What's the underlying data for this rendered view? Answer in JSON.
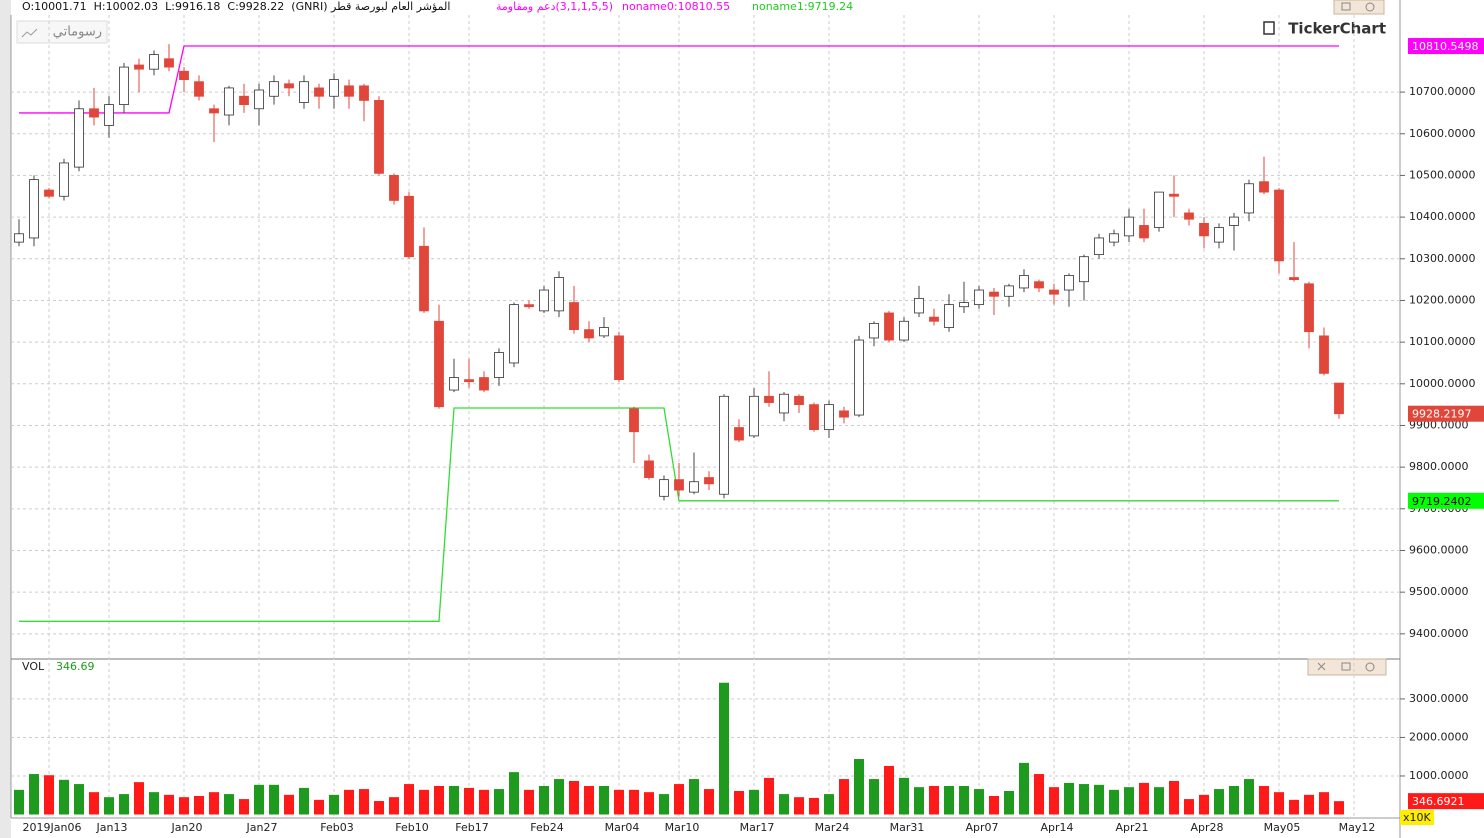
{
  "header": {
    "instrument": "المؤشر العام لبورصة قطر (GNRI)  O:10001.71  H:10002.03  L:9916.18  C:9928.22",
    "indicator": "(3,1,1,5,5)دعم ومقاومة",
    "noname0": "noname0:10810.55",
    "noname1": "noname1:9719.24",
    "drawings_button": "رسوماتي",
    "logo": "TickerChart"
  },
  "chart_data": [
    {
      "type": "candlestick",
      "up_color": "#ffffff",
      "down_color": "#e0473a",
      "grid": true,
      "categories": [
        null,
        null,
        "2019Jan06",
        null,
        null,
        null,
        "Jan13",
        null,
        null,
        null,
        null,
        "Jan20",
        null,
        null,
        null,
        null,
        "Jan27",
        null,
        null,
        null,
        null,
        "Feb03",
        null,
        null,
        null,
        null,
        "Feb10",
        null,
        null,
        null,
        "Feb17",
        null,
        null,
        null,
        null,
        "Feb24",
        null,
        null,
        null,
        null,
        "Mar04",
        null,
        null,
        null,
        "Mar10",
        null,
        null,
        null,
        null,
        "Mar17",
        null,
        null,
        null,
        null,
        "Mar24",
        null,
        null,
        null,
        null,
        "Mar31",
        null,
        null,
        null,
        null,
        "Apr07",
        null,
        null,
        null,
        null,
        "Apr14",
        null,
        null,
        null,
        null,
        "Apr21",
        null,
        null,
        null,
        null,
        "Apr28",
        null,
        null,
        null,
        null,
        "May05",
        null,
        null,
        null,
        null,
        "May12"
      ],
      "open": [
        10340,
        10350,
        10465,
        10450,
        10520,
        10660,
        10620,
        10670,
        10765,
        10755,
        10780,
        10750,
        10725,
        10660,
        10645,
        10690,
        10660,
        10690,
        10720,
        10675,
        10710,
        10690,
        10715,
        10715,
        10680,
        10500,
        10450,
        10330,
        10150,
        9985,
        10010,
        10015,
        10015,
        10050,
        10190,
        10175,
        10175,
        10195,
        10130,
        10115,
        10115,
        9940,
        9815,
        9730,
        9770,
        9740,
        9775,
        9735,
        9895,
        9875,
        9970,
        9930,
        9970,
        9950,
        9890,
        9935,
        9925,
        10110,
        10170,
        10105,
        10170,
        10160,
        10135,
        10185,
        10190,
        10220,
        10210,
        10230,
        10245,
        10225,
        10225,
        10245,
        10310,
        10340,
        10355,
        10380,
        10375,
        10455,
        10410,
        10385,
        10340,
        10380,
        10410,
        10485,
        10465,
        10255,
        10240,
        10115,
        10001.71,
        null
      ],
      "high": [
        10395,
        10500,
        10470,
        10540,
        10680,
        10710,
        10690,
        10770,
        10780,
        10800,
        10815,
        10760,
        10740,
        10670,
        10715,
        10720,
        10720,
        10740,
        10730,
        10740,
        10720,
        10745,
        10730,
        10720,
        10690,
        10505,
        10460,
        10375,
        10190,
        10060,
        10060,
        10030,
        10085,
        10195,
        10200,
        10235,
        10270,
        10235,
        10150,
        10160,
        10125,
        9945,
        9830,
        9780,
        9810,
        9835,
        9790,
        9975,
        9915,
        9990,
        10030,
        9980,
        9975,
        9955,
        9960,
        9945,
        10115,
        10150,
        10175,
        10160,
        10235,
        10180,
        10215,
        10245,
        10235,
        10230,
        10240,
        10275,
        10250,
        10240,
        10265,
        10310,
        10360,
        10370,
        10420,
        10420,
        10460,
        10500,
        10420,
        10400,
        10385,
        10410,
        10490,
        10545,
        10470,
        10340,
        10245,
        10135,
        10002.03,
        null
      ],
      "low": [
        10330,
        10330,
        10445,
        10440,
        10510,
        10620,
        10590,
        10650,
        10700,
        10740,
        10750,
        10700,
        10680,
        10580,
        10620,
        10650,
        10620,
        10670,
        10690,
        10660,
        10660,
        10660,
        10660,
        10630,
        10500,
        10430,
        10300,
        10170,
        9940,
        9980,
        9990,
        9980,
        9995,
        10040,
        10180,
        10170,
        10160,
        10120,
        10100,
        10110,
        10005,
        9810,
        9770,
        9720,
        9730,
        9735,
        9745,
        9725,
        9860,
        9870,
        9945,
        9910,
        9930,
        9885,
        9870,
        9905,
        9920,
        10090,
        10100,
        10100,
        10160,
        10140,
        10125,
        10170,
        10180,
        10165,
        10185,
        10220,
        10220,
        10190,
        10185,
        10200,
        10300,
        10330,
        10340,
        10340,
        10365,
        10400,
        10380,
        10325,
        10325,
        10320,
        10390,
        10455,
        10265,
        10245,
        10085,
        10020,
        9916.18,
        null
      ],
      "close": [
        10360,
        10490,
        10450,
        10530,
        10660,
        10640,
        10670,
        10760,
        10755,
        10790,
        10760,
        10730,
        10690,
        10650,
        10710,
        10670,
        10705,
        10725,
        10710,
        10725,
        10690,
        10730,
        10690,
        10680,
        10505,
        10440,
        10305,
        10175,
        9945,
        10015,
        10005,
        9985,
        10075,
        10190,
        10185,
        10225,
        10255,
        10130,
        10110,
        10135,
        10010,
        9885,
        9775,
        9770,
        9745,
        9765,
        9760,
        9970,
        9865,
        9970,
        9955,
        9975,
        9950,
        9890,
        9950,
        9920,
        10105,
        10145,
        10105,
        10150,
        10205,
        10150,
        10190,
        10195,
        10225,
        10210,
        10235,
        10260,
        10230,
        10215,
        10260,
        10305,
        10350,
        10360,
        10400,
        10350,
        10460,
        10450,
        10395,
        10355,
        10375,
        10400,
        10480,
        10460,
        10295,
        10250,
        10125,
        10025,
        9928.22,
        null
      ],
      "lines": [
        {
          "color": "#ff00ff",
          "values": [
            10650,
            10650,
            10650,
            10650,
            10650,
            10650,
            10650,
            10650,
            10650,
            10650,
            10650,
            10810.55,
            10810.55,
            10810.55,
            10810.55,
            10810.55,
            10810.55,
            10810.55,
            10810.55,
            10810.55,
            10810.55,
            10810.55,
            10810.55,
            10810.55,
            10810.55,
            10810.55,
            10810.55,
            10810.55,
            10810.55,
            10810.55,
            10810.55,
            10810.55,
            10810.55,
            10810.55,
            10810.55,
            10810.55,
            10810.55,
            10810.55,
            10810.55,
            10810.55,
            10810.55,
            10810.55,
            10810.55,
            10810.55,
            10810.55,
            10810.55,
            10810.55,
            10810.55,
            10810.55,
            10810.55,
            10810.55,
            10810.55,
            10810.55,
            10810.55,
            10810.55,
            10810.55,
            10810.55,
            10810.55,
            10810.55,
            10810.55,
            10810.55,
            10810.55,
            10810.55,
            10810.55,
            10810.55,
            10810.55,
            10810.55,
            10810.55,
            10810.55,
            10810.55,
            10810.55,
            10810.55,
            10810.55,
            10810.55,
            10810.55,
            10810.55,
            10810.55,
            10810.55,
            10810.55,
            10810.55,
            10810.55,
            10810.55,
            10810.55,
            10810.55,
            10810.55,
            10810.55,
            10810.55,
            10810.55,
            10810.55,
            null
          ]
        },
        {
          "color": "#33dd33",
          "values": [
            9430,
            9430,
            9430,
            9430,
            9430,
            9430,
            9430,
            9430,
            9430,
            9430,
            9430,
            9430,
            9430,
            9430,
            9430,
            9430,
            9430,
            9430,
            9430,
            9430,
            9430,
            9430,
            9430,
            9430,
            9430,
            9430,
            9430,
            9430,
            9430,
            9942,
            9942,
            9942,
            9942,
            9942,
            9942,
            9942,
            9942,
            9942,
            9942,
            9942,
            9942,
            9942,
            9942,
            9942,
            9719.24,
            9719.24,
            9719.24,
            9719.24,
            9719.24,
            9719.24,
            9719.24,
            9719.24,
            9719.24,
            9719.24,
            9719.24,
            9719.24,
            9719.24,
            9719.24,
            9719.24,
            9719.24,
            9719.24,
            9719.24,
            9719.24,
            9719.24,
            9719.24,
            9719.24,
            9719.24,
            9719.24,
            9719.24,
            9719.24,
            9719.24,
            9719.24,
            9719.24,
            9719.24,
            9719.24,
            9719.24,
            9719.24,
            9719.24,
            9719.24,
            9719.24,
            9719.24,
            9719.24,
            9719.24,
            9719.24,
            9719.24,
            9719.24,
            9719.24,
            9719.24,
            9719.24,
            null
          ]
        }
      ],
      "price_markers": [
        {
          "value": 10810.5498,
          "color": "#ff00ff",
          "text_color": "#ffffff"
        },
        {
          "value": 9928.2197,
          "color": "#e0473a",
          "text_color": "#ffffff"
        },
        {
          "value": 9719.2402,
          "color": "#00ff00",
          "text_color": "#000000"
        }
      ],
      "ylim": [
        9342,
        10885
      ],
      "yticks": [
        {
          "value": 9400,
          "label": "9400.0000"
        },
        {
          "value": 9500,
          "label": "9500.0000"
        },
        {
          "value": 9600,
          "label": "9600.0000"
        },
        {
          "value": 9700,
          "label": "9700.0000"
        },
        {
          "value": 9800,
          "label": "9800.0000"
        },
        {
          "value": 9900,
          "label": "9900.0000"
        },
        {
          "value": 10000,
          "label": "10000.0000"
        },
        {
          "value": 10100,
          "label": "10100.0000"
        },
        {
          "value": 10200,
          "label": "10200.0000"
        },
        {
          "value": 10300,
          "label": "10300.0000"
        },
        {
          "value": 10400,
          "label": "10400.0000"
        },
        {
          "value": 10500,
          "label": "10500.0000"
        },
        {
          "value": 10600,
          "label": "10600.0000"
        },
        {
          "value": 10700,
          "label": "10700.0000"
        }
      ]
    },
    {
      "type": "bar",
      "title": "VOL",
      "last_label": 346.69,
      "unit_label": "x10K",
      "up_color": "#1e9a1e",
      "down_color": "#ff1a1a",
      "grid": true,
      "values": [
        640,
        1050,
        1020,
        900,
        790,
        580,
        450,
        530,
        840,
        580,
        510,
        450,
        480,
        580,
        530,
        400,
        770,
        770,
        510,
        690,
        380,
        510,
        640,
        660,
        350,
        450,
        790,
        640,
        740,
        740,
        690,
        640,
        660,
        1100,
        640,
        740,
        920,
        870,
        740,
        740,
        640,
        640,
        580,
        530,
        790,
        920,
        660,
        3420,
        610,
        640,
        950,
        530,
        450,
        430,
        530,
        920,
        1440,
        920,
        1260,
        950,
        710,
        740,
        740,
        740,
        660,
        480,
        610,
        1340,
        1050,
        710,
        820,
        790,
        770,
        640,
        710,
        820,
        710,
        870,
        400,
        510,
        660,
        740,
        920,
        740,
        580,
        380,
        510,
        580,
        346.6921,
        null
      ],
      "last_marker": {
        "value": 346.6921,
        "color": "#ff1a1a"
      },
      "ylim": [
        0,
        4010
      ],
      "yticks": [
        {
          "value": 1000,
          "label": "1000.0000"
        },
        {
          "value": 2000,
          "label": "2000.0000"
        },
        {
          "value": 3000,
          "label": "3000.0000"
        }
      ]
    }
  ]
}
